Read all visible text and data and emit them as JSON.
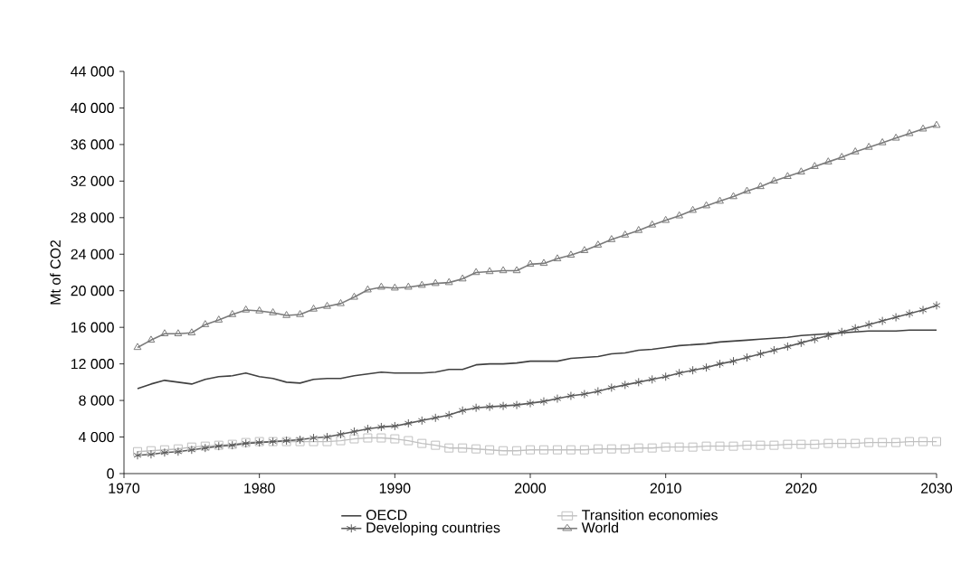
{
  "chart_data": {
    "type": "line",
    "ylabel": "Mt of CO2",
    "xlim": [
      1970,
      2030
    ],
    "xticks": [
      1970,
      1980,
      1990,
      2000,
      2010,
      2020,
      2030
    ],
    "ylim": [
      0,
      44000
    ],
    "yticks": [
      0,
      {
        "value": 4000,
        "label": "4 000"
      },
      {
        "value": 8000,
        "label": "8 000"
      },
      {
        "value": 12000,
        "label": "12 000"
      },
      {
        "value": 16000,
        "label": "16 000"
      },
      {
        "value": 20000,
        "label": "20 000"
      },
      {
        "value": 24000,
        "label": "24 000"
      },
      {
        "value": 28000,
        "label": "28 000"
      },
      {
        "value": 32000,
        "label": "32 000"
      },
      {
        "value": 36000,
        "label": "36 000"
      },
      {
        "value": 40000,
        "label": "40 000"
      },
      {
        "value": 44000,
        "label": "44 000"
      }
    ],
    "grid": false,
    "legend": "bottom",
    "line_style": "solid",
    "x": [
      1971,
      1972,
      1973,
      1974,
      1975,
      1976,
      1977,
      1978,
      1979,
      1980,
      1981,
      1982,
      1983,
      1984,
      1985,
      1986,
      1987,
      1988,
      1989,
      1990,
      1991,
      1992,
      1993,
      1994,
      1995,
      1996,
      1997,
      1998,
      1999,
      2000,
      2001,
      2002,
      2003,
      2004,
      2005,
      2006,
      2007,
      2008,
      2009,
      2010,
      2011,
      2012,
      2013,
      2014,
      2015,
      2016,
      2017,
      2018,
      2019,
      2020,
      2021,
      2022,
      2023,
      2024,
      2025,
      2026,
      2027,
      2028,
      2029,
      2030
    ],
    "series": [
      {
        "name": "OECD",
        "color": "#404040",
        "marker": "none",
        "values": [
          9300,
          9800,
          10200,
          10000,
          9800,
          10300,
          10600,
          10700,
          11000,
          10600,
          10400,
          10000,
          9900,
          10300,
          10400,
          10400,
          10700,
          10900,
          11100,
          11000,
          11000,
          11000,
          11100,
          11400,
          11400,
          11900,
          12000,
          12000,
          12100,
          12300,
          12300,
          12300,
          12600,
          12700,
          12800,
          13100,
          13200,
          13500,
          13600,
          13800,
          14000,
          14100,
          14200,
          14400,
          14500,
          14600,
          14700,
          14800,
          14900,
          15100,
          15200,
          15300,
          15400,
          15500,
          15600,
          15600,
          15600,
          15700,
          15700,
          15700
        ]
      },
      {
        "name": "Transition economies",
        "color": "#c0c0c0",
        "marker": "square",
        "values": [
          2400,
          2500,
          2600,
          2700,
          2900,
          3000,
          3100,
          3200,
          3400,
          3500,
          3500,
          3500,
          3500,
          3500,
          3500,
          3600,
          3800,
          3900,
          3900,
          3800,
          3600,
          3300,
          3100,
          2800,
          2800,
          2700,
          2600,
          2500,
          2500,
          2600,
          2600,
          2600,
          2600,
          2600,
          2700,
          2700,
          2700,
          2800,
          2800,
          2900,
          2900,
          2900,
          3000,
          3000,
          3000,
          3100,
          3100,
          3100,
          3200,
          3200,
          3200,
          3300,
          3300,
          3300,
          3400,
          3400,
          3400,
          3500,
          3500,
          3500
        ]
      },
      {
        "name": "Developing countries",
        "color": "#5a5a5a",
        "marker": "cross",
        "values": [
          2000,
          2100,
          2300,
          2400,
          2600,
          2800,
          3000,
          3100,
          3300,
          3400,
          3500,
          3600,
          3700,
          3900,
          4000,
          4300,
          4600,
          4900,
          5100,
          5200,
          5500,
          5800,
          6100,
          6400,
          6900,
          7200,
          7300,
          7400,
          7500,
          7700,
          7900,
          8200,
          8500,
          8700,
          9000,
          9400,
          9700,
          10000,
          10300,
          10600,
          11000,
          11300,
          11600,
          12000,
          12300,
          12700,
          13100,
          13500,
          13900,
          14300,
          14700,
          15100,
          15500,
          15900,
          16300,
          16700,
          17100,
          17500,
          17900,
          18400
        ]
      },
      {
        "name": "World",
        "color": "#7a7a7a",
        "marker": "triangle",
        "values": [
          13800,
          14600,
          15300,
          15300,
          15400,
          16300,
          16800,
          17400,
          17900,
          17800,
          17600,
          17300,
          17400,
          18000,
          18300,
          18600,
          19300,
          20100,
          20400,
          20300,
          20400,
          20600,
          20800,
          20900,
          21300,
          22000,
          22100,
          22200,
          22200,
          22900,
          23000,
          23500,
          23900,
          24400,
          25000,
          25600,
          26100,
          26600,
          27200,
          27700,
          28200,
          28800,
          29300,
          29800,
          30300,
          30900,
          31400,
          32000,
          32500,
          33000,
          33600,
          34100,
          34600,
          35200,
          35700,
          36200,
          36700,
          37200,
          37700,
          38100
        ]
      }
    ]
  }
}
